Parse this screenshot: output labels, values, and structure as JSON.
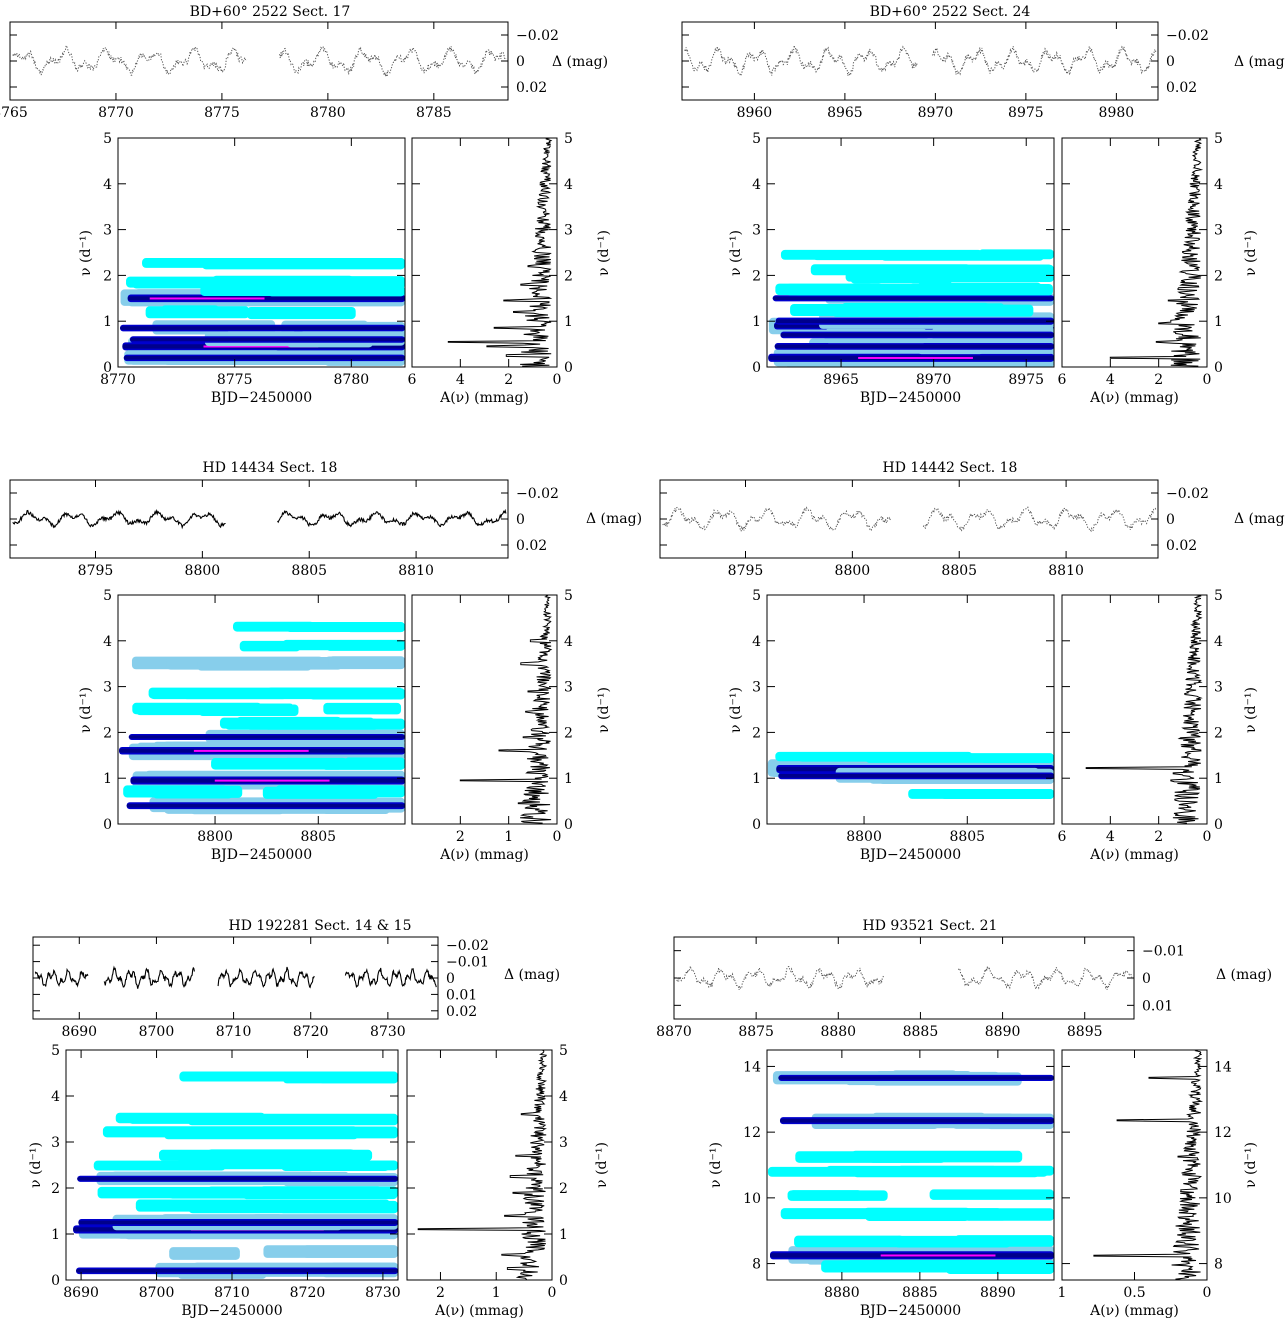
{
  "colors": {
    "c1": "#00ffff",
    "c2": "#87ceeb",
    "c3": "#0000cd",
    "c4": "#00008b",
    "c5": "#ff00ff",
    "ink": "#000000",
    "dark": "#404040"
  },
  "common": {
    "y_top": "Δ (mag)",
    "bjd": "BJD−2450000",
    "amp": "A(ν) (mmag)",
    "freq": "ν (d⁻¹)"
  },
  "chart_data": [
    {
      "type": "heatmap",
      "title": "BD+60° 2522 Sect. 17",
      "light_curve": {
        "xlim": [
          8765,
          8788.5
        ],
        "ylim": [
          0.03,
          -0.03
        ],
        "xticks": [
          8765,
          8770,
          8775,
          8780,
          8785
        ],
        "yticks": [
          -0.02,
          0,
          0.02
        ],
        "gaps": [
          [
            8776.2,
            8777.7
          ]
        ],
        "amp": 0.011,
        "style": "dotted"
      },
      "dyn": {
        "xlim": [
          8770,
          8782.3
        ],
        "xticks": [
          8770,
          8775,
          8780
        ],
        "ylim": [
          0,
          5
        ],
        "yticks": [
          0,
          1,
          2,
          3,
          4,
          5
        ],
        "bands": [
          [
            0.45,
            1.0
          ],
          [
            1.5,
            0.9
          ],
          [
            0.85,
            0.7
          ],
          [
            0.2,
            0.7
          ],
          [
            1.2,
            0.5
          ],
          [
            1.85,
            0.4
          ],
          [
            2.25,
            0.3
          ],
          [
            0.6,
            0.7
          ],
          [
            1.65,
            0.35
          ]
        ]
      },
      "amp": {
        "xlim": [
          6,
          0
        ],
        "xticks": [
          6,
          4,
          2,
          0
        ],
        "peaks": [
          [
            0.55,
            4.5
          ],
          [
            0.45,
            2.9
          ],
          [
            0.85,
            2.6
          ],
          [
            1.45,
            2.2
          ],
          [
            0.25,
            2.1
          ],
          [
            1.2,
            1.8
          ],
          [
            1.8,
            1.5
          ],
          [
            2.2,
            1.2
          ]
        ]
      }
    },
    {
      "type": "heatmap",
      "title": "BD+60° 2522 Sect. 24",
      "light_curve": {
        "xlim": [
          8956,
          8982.3
        ],
        "ylim": [
          0.03,
          -0.03
        ],
        "xticks": [
          8960,
          8965,
          8970,
          8975,
          8980
        ],
        "yticks": [
          -0.02,
          0,
          0.02
        ],
        "gaps": [
          [
            8969.0,
            8969.8
          ]
        ],
        "amp": 0.011,
        "style": "dotted"
      },
      "dyn": {
        "xlim": [
          8961,
          8976.5
        ],
        "xticks": [
          8965,
          8970,
          8975
        ],
        "ylim": [
          0,
          5
        ],
        "yticks": [
          0,
          1,
          2,
          3,
          4,
          5
        ],
        "bands": [
          [
            0.2,
            1.0
          ],
          [
            0.9,
            0.9
          ],
          [
            1.0,
            0.8
          ],
          [
            0.45,
            0.75
          ],
          [
            0.7,
            0.7
          ],
          [
            1.5,
            0.6
          ],
          [
            1.25,
            0.5
          ],
          [
            1.7,
            0.45
          ],
          [
            2.1,
            0.4
          ],
          [
            2.45,
            0.3
          ],
          [
            1.95,
            0.3
          ]
        ]
      },
      "amp": {
        "xlim": [
          6,
          0
        ],
        "xticks": [
          6,
          4,
          2,
          0
        ],
        "peaks": [
          [
            0.2,
            4.0
          ],
          [
            0.55,
            2.1
          ],
          [
            0.95,
            2.0
          ],
          [
            1.45,
            1.6
          ],
          [
            1.0,
            1.5
          ],
          [
            0.75,
            1.3
          ],
          [
            1.7,
            1.2
          ],
          [
            2.4,
            1.0
          ]
        ]
      }
    },
    {
      "type": "heatmap",
      "title": "HD 14434 Sect. 18",
      "light_curve": {
        "xlim": [
          8791,
          8814.3
        ],
        "ylim": [
          0.03,
          -0.03
        ],
        "xticks": [
          8795,
          8800,
          8805,
          8810
        ],
        "yticks": [
          -0.02,
          0,
          0.02
        ],
        "gaps": [
          [
            8801.1,
            8803.5
          ]
        ],
        "amp": 0.006,
        "style": "solid"
      },
      "dyn": {
        "xlim": [
          8795.3,
          8809.2
        ],
        "xticks": [
          8800,
          8805
        ],
        "ylim": [
          0,
          5
        ],
        "yticks": [
          0,
          1,
          2,
          3,
          4,
          5
        ],
        "bands": [
          [
            0.95,
            1.0
          ],
          [
            1.6,
            0.9
          ],
          [
            0.4,
            0.75
          ],
          [
            1.9,
            0.6
          ],
          [
            3.5,
            0.55
          ],
          [
            2.5,
            0.45
          ],
          [
            2.85,
            0.4
          ],
          [
            3.9,
            0.35
          ],
          [
            4.3,
            0.3
          ],
          [
            0.7,
            0.5
          ],
          [
            1.3,
            0.45
          ],
          [
            2.2,
            0.4
          ]
        ]
      },
      "amp": {
        "xlim": [
          3,
          0
        ],
        "xticks": [
          2,
          1,
          0
        ],
        "peaks": [
          [
            0.95,
            2.0
          ],
          [
            1.6,
            1.2
          ],
          [
            3.5,
            0.75
          ],
          [
            0.45,
            0.8
          ],
          [
            1.9,
            0.7
          ],
          [
            2.45,
            0.65
          ],
          [
            2.9,
            0.6
          ],
          [
            4.0,
            0.55
          ]
        ]
      }
    },
    {
      "type": "heatmap",
      "title": "HD 14442 Sect. 18",
      "light_curve": {
        "xlim": [
          8791,
          8814.3
        ],
        "ylim": [
          0.03,
          -0.03
        ],
        "xticks": [
          8795,
          8800,
          8805,
          8810
        ],
        "yticks": [
          -0.02,
          0,
          0.02
        ],
        "gaps": [
          [
            8801.8,
            8803.3
          ]
        ],
        "amp": 0.009,
        "style": "dotted"
      },
      "dyn": {
        "xlim": [
          8795.3,
          8809.2
        ],
        "xticks": [
          8800,
          8805
        ],
        "ylim": [
          0,
          5
        ],
        "yticks": [
          0,
          1,
          2,
          3,
          4,
          5
        ],
        "bands": [
          [
            1.2,
            1.0
          ],
          [
            1.05,
            0.75
          ],
          [
            0.65,
            0.3
          ],
          [
            1.45,
            0.25
          ]
        ]
      },
      "amp": {
        "xlim": [
          6,
          0
        ],
        "xticks": [
          6,
          4,
          2,
          0
        ],
        "peaks": [
          [
            1.22,
            5.0
          ],
          [
            0.95,
            1.5
          ],
          [
            1.1,
            1.4
          ],
          [
            0.7,
            0.9
          ],
          [
            1.5,
            0.8
          ],
          [
            0.4,
            0.8
          ]
        ]
      }
    },
    {
      "type": "heatmap",
      "title": "HD 192281 Sect. 14 & 15",
      "light_curve": {
        "xlim": [
          8684,
          8736.5
        ],
        "ylim": [
          0.025,
          -0.025
        ],
        "xticks": [
          8690,
          8700,
          8710,
          8720,
          8730
        ],
        "yticks": [
          -0.02,
          -0.01,
          0,
          0.01,
          0.02
        ],
        "gaps": [
          [
            8691.2,
            8693.2
          ],
          [
            8705.0,
            8708.0
          ],
          [
            8720.5,
            8724.5
          ]
        ],
        "amp": 0.006,
        "style": "solid"
      },
      "dyn": {
        "xlim": [
          8688,
          8732
        ],
        "xticks": [
          8690,
          8700,
          8710,
          8720,
          8730
        ],
        "ylim": [
          0,
          5
        ],
        "yticks": [
          0,
          1,
          2,
          3,
          4,
          5
        ],
        "bands": [
          [
            1.1,
            1.0
          ],
          [
            1.25,
            0.8
          ],
          [
            0.2,
            0.7
          ],
          [
            2.2,
            0.6
          ],
          [
            0.6,
            0.55
          ],
          [
            1.6,
            0.5
          ],
          [
            1.9,
            0.45
          ],
          [
            2.7,
            0.4
          ],
          [
            3.2,
            0.4
          ],
          [
            3.5,
            0.35
          ],
          [
            4.4,
            0.3
          ],
          [
            2.5,
            0.3
          ]
        ]
      },
      "amp": {
        "xlim": [
          2.6,
          0
        ],
        "xticks": [
          2,
          1,
          0
        ],
        "peaks": [
          [
            1.1,
            2.4
          ],
          [
            0.55,
            0.9
          ],
          [
            1.4,
            0.85
          ],
          [
            2.25,
            0.75
          ],
          [
            1.9,
            0.7
          ],
          [
            2.7,
            0.65
          ],
          [
            3.6,
            0.55
          ],
          [
            0.25,
            0.8
          ]
        ]
      }
    },
    {
      "type": "heatmap",
      "title": "HD 93521 Sect. 21",
      "light_curve": {
        "xlim": [
          8870,
          8898
        ],
        "ylim": [
          0.015,
          -0.015
        ],
        "xticks": [
          8870,
          8875,
          8880,
          8885,
          8890,
          8895
        ],
        "yticks": [
          -0.01,
          0,
          0.01
        ],
        "gaps": [
          [
            8882.8,
            8887.3
          ]
        ],
        "amp": 0.004,
        "style": "dotted"
      },
      "dyn": {
        "xlim": [
          8875.2,
          8893.6
        ],
        "xticks": [
          8880,
          8885,
          8890
        ],
        "ylim": [
          7.5,
          14.5
        ],
        "yticks": [
          8,
          10,
          12,
          14
        ],
        "bands": [
          [
            8.25,
            1.0
          ],
          [
            12.35,
            0.8
          ],
          [
            13.65,
            0.6
          ],
          [
            11.25,
            0.45
          ],
          [
            9.5,
            0.4
          ],
          [
            10.1,
            0.35
          ],
          [
            8.7,
            0.45
          ],
          [
            10.8,
            0.3
          ],
          [
            7.9,
            0.5
          ]
        ]
      },
      "amp": {
        "xlim": [
          1,
          0
        ],
        "xticks": [
          1,
          0.5,
          0
        ],
        "xticklabels": [
          "1",
          "0.5",
          "0"
        ],
        "peaks": [
          [
            8.25,
            0.78
          ],
          [
            12.35,
            0.62
          ],
          [
            13.65,
            0.4
          ],
          [
            11.25,
            0.2
          ],
          [
            9.4,
            0.15
          ],
          [
            10.1,
            0.12
          ]
        ]
      }
    }
  ]
}
